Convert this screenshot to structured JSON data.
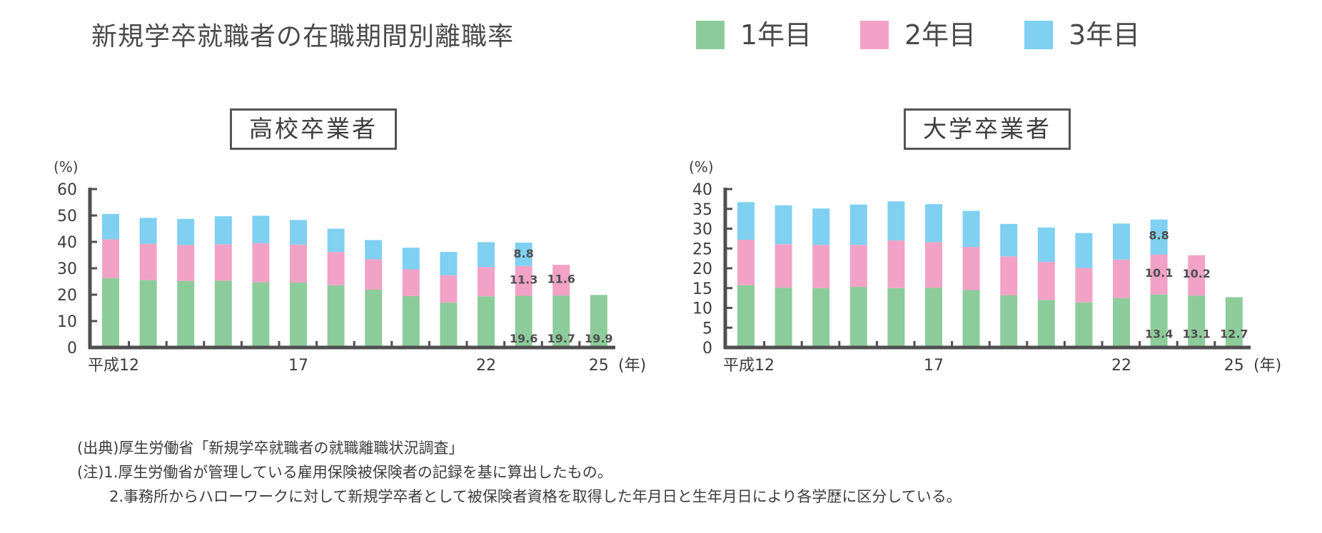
{
  "title": "新規学卒就職者の在職期間別離職率",
  "colors": {
    "year1": "#8ccc9a",
    "year2": "#f2a2c6",
    "year3": "#7fd0f1",
    "axis": "#4f4f4f",
    "value_label": "#4f4f4f"
  },
  "legend": [
    {
      "label": "1年目",
      "color": "#8ccc9a"
    },
    {
      "label": "2年目",
      "color": "#f2a2c6"
    },
    {
      "label": "3年目",
      "color": "#7fd0f1"
    }
  ],
  "chart_data": [
    {
      "type": "bar",
      "stacked": true,
      "title": "高校卒業者",
      "ylabel": "(%)",
      "xunit": "(年)",
      "ylim": [
        0,
        60
      ],
      "yticks": [
        0,
        10,
        20,
        30,
        40,
        50,
        60
      ],
      "x": [
        12,
        13,
        14,
        15,
        16,
        17,
        18,
        19,
        20,
        21,
        22,
        23,
        24,
        25
      ],
      "x_tick_labels": [
        {
          "x": 12,
          "label": "平成12"
        },
        {
          "x": 17,
          "label": "17"
        },
        {
          "x": 22,
          "label": "22"
        },
        {
          "x": 25,
          "label": "25"
        }
      ],
      "series": [
        {
          "name": "1年目",
          "values": [
            26.3,
            25.5,
            25.2,
            25.3,
            24.7,
            24.6,
            23.6,
            21.9,
            19.5,
            17.0,
            19.4,
            19.6,
            19.7,
            19.9
          ]
        },
        {
          "name": "2年目",
          "values": [
            14.7,
            13.8,
            13.6,
            13.8,
            14.8,
            14.4,
            12.6,
            11.5,
            10.1,
            10.4,
            11.1,
            11.3,
            11.6,
            null
          ]
        },
        {
          "name": "3年目",
          "values": [
            9.6,
            9.8,
            9.9,
            10.6,
            10.4,
            9.3,
            8.8,
            7.3,
            8.2,
            8.8,
            9.4,
            8.8,
            null,
            null
          ]
        }
      ],
      "value_labels": [
        {
          "x": 23,
          "series": "3年目",
          "label": "8.8"
        },
        {
          "x": 23,
          "series": "2年目",
          "label": "11.3"
        },
        {
          "x": 23,
          "series": "1年目",
          "label": "19.6"
        },
        {
          "x": 24,
          "series": "2年目",
          "label": "11.6"
        },
        {
          "x": 24,
          "series": "1年目",
          "label": "19.7"
        },
        {
          "x": 25,
          "series": "1年目",
          "label": "19.9"
        }
      ]
    },
    {
      "type": "bar",
      "stacked": true,
      "title": "大学卒業者",
      "ylabel": "(%)",
      "xunit": "(年)",
      "ylim": [
        0,
        40
      ],
      "yticks": [
        0,
        5,
        10,
        15,
        20,
        25,
        30,
        35,
        40
      ],
      "x": [
        12,
        13,
        14,
        15,
        16,
        17,
        18,
        19,
        20,
        21,
        22,
        23,
        24,
        25
      ],
      "x_tick_labels": [
        {
          "x": 12,
          "label": "平成12"
        },
        {
          "x": 17,
          "label": "17"
        },
        {
          "x": 22,
          "label": "22"
        },
        {
          "x": 25,
          "label": "25"
        }
      ],
      "series": [
        {
          "name": "1年目",
          "values": [
            15.7,
            15.1,
            15.0,
            15.3,
            15.0,
            15.1,
            14.5,
            13.2,
            12.0,
            11.4,
            12.5,
            13.4,
            13.1,
            12.7
          ]
        },
        {
          "name": "2年目",
          "values": [
            11.5,
            11.0,
            10.9,
            10.6,
            12.0,
            11.5,
            10.9,
            9.8,
            9.6,
            8.7,
            9.7,
            10.1,
            10.2,
            null
          ]
        },
        {
          "name": "3年目",
          "values": [
            9.5,
            9.8,
            9.2,
            10.2,
            9.9,
            9.6,
            9.1,
            8.2,
            8.7,
            8.8,
            9.1,
            8.8,
            null,
            null
          ]
        }
      ],
      "value_labels": [
        {
          "x": 23,
          "series": "3年目",
          "label": "8.8"
        },
        {
          "x": 23,
          "series": "2年目",
          "label": "10.1"
        },
        {
          "x": 23,
          "series": "1年目",
          "label": "13.4"
        },
        {
          "x": 24,
          "series": "2年目",
          "label": "10.2"
        },
        {
          "x": 24,
          "series": "1年目",
          "label": "13.1"
        },
        {
          "x": 25,
          "series": "1年目",
          "label": "12.7"
        }
      ]
    }
  ],
  "notes": {
    "source": "(出典)厚生労働省「新規学卒就職者の就職離職状況調査」",
    "note1": "(注)1.厚生労働省が管理している雇用保険被保険者の記録を基に算出したもの。",
    "note2": "2.事務所からハローワークに対して新規学卒者として被保険者資格を取得した年月日と生年月日により各学歴に区分している。"
  }
}
